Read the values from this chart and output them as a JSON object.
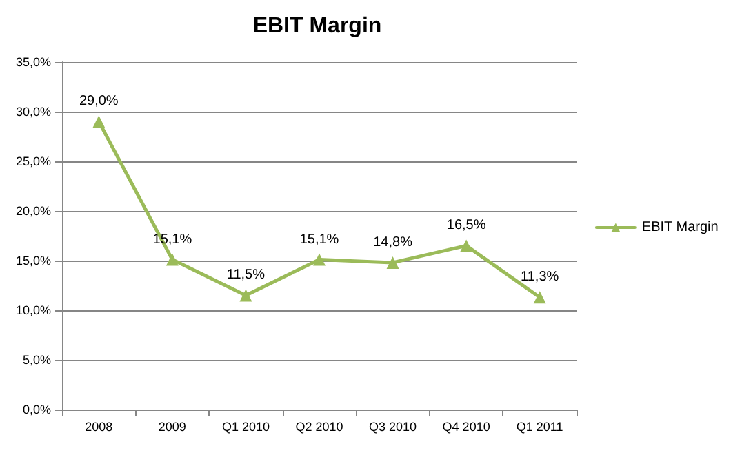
{
  "chart_data": {
    "type": "line",
    "title": "EBIT Margin",
    "categories": [
      "2008",
      "2009",
      "Q1 2010",
      "Q2 2010",
      "Q3 2010",
      "Q4 2010",
      "Q1 2011"
    ],
    "series": [
      {
        "name": "EBIT Margin",
        "color": "#9bbb59",
        "values": [
          29.0,
          15.1,
          11.5,
          15.1,
          14.8,
          16.5,
          11.3
        ],
        "value_labels": [
          "29,0%",
          "15,1%",
          "11,5%",
          "15,1%",
          "14,8%",
          "16,5%",
          "11,3%"
        ]
      }
    ],
    "ylim": [
      0,
      35
    ],
    "yticks": [
      {
        "value": 0,
        "label": "0,0%"
      },
      {
        "value": 5,
        "label": "5,0%"
      },
      {
        "value": 10,
        "label": "10,0%"
      },
      {
        "value": 15,
        "label": "15,0%"
      },
      {
        "value": 20,
        "label": "20,0%"
      },
      {
        "value": 25,
        "label": "25,0%"
      },
      {
        "value": 30,
        "label": "30,0%"
      },
      {
        "value": 35,
        "label": "35,0%"
      }
    ],
    "grid": "y",
    "legend": "right",
    "marker": "triangle",
    "line_style": "solid"
  }
}
